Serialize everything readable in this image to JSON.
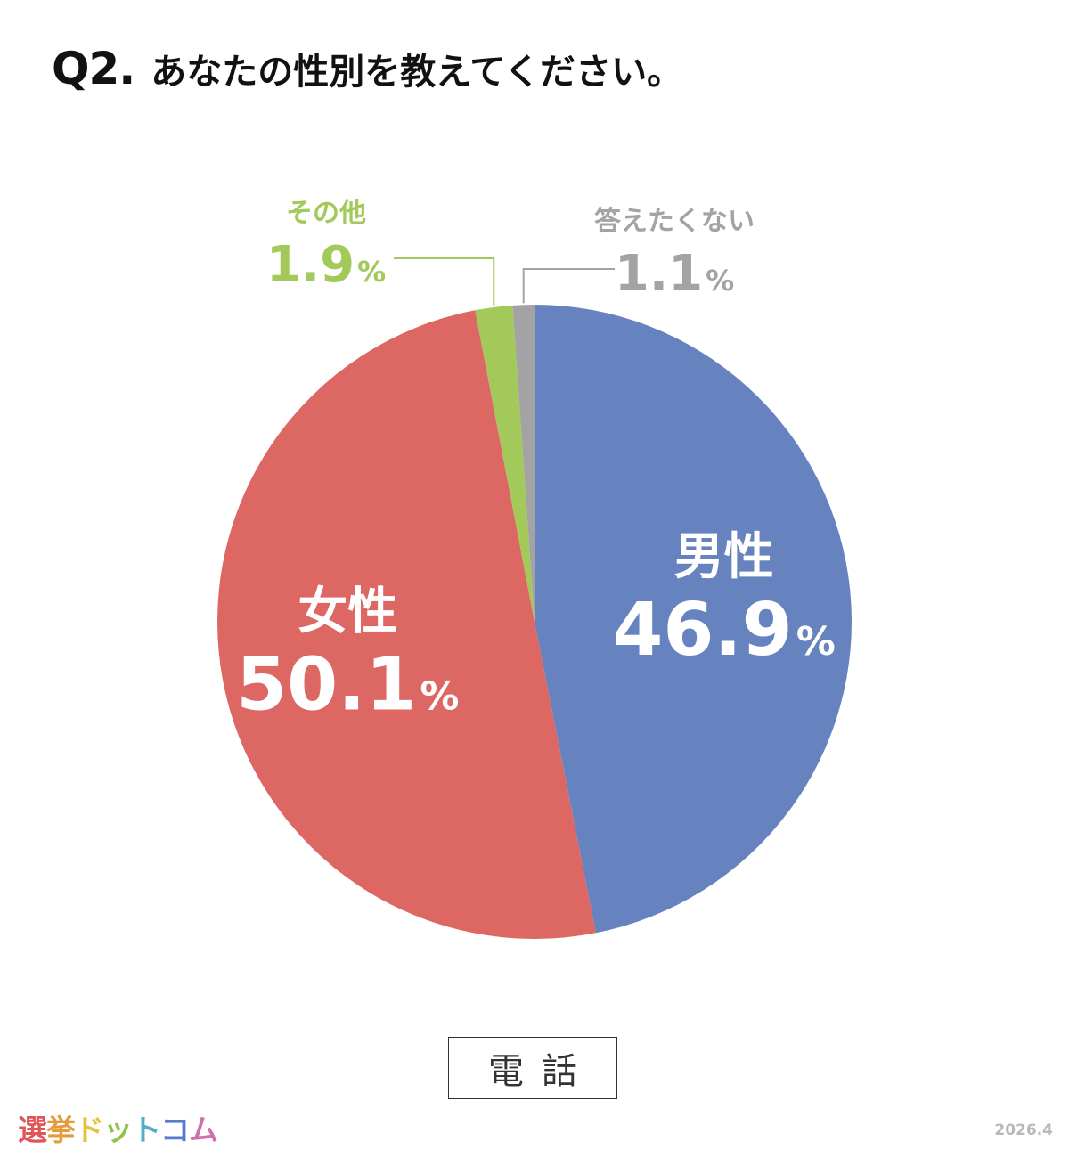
{
  "title": {
    "number": "Q2.",
    "text": "あなたの性別を教えてください。"
  },
  "chart_data": {
    "type": "pie",
    "slices": [
      {
        "label": "男性",
        "value": 46.9,
        "display": "46.9",
        "unit": "%",
        "color": "#6683c0",
        "label_color": "#ffffff"
      },
      {
        "label": "女性",
        "value": 50.1,
        "display": "50.1",
        "unit": "%",
        "color": "#dd6762",
        "label_color": "#ffffff"
      },
      {
        "label": "その他",
        "value": 1.9,
        "display": "1.9",
        "unit": "%",
        "color": "#a3c95b",
        "label_color": "#a3c95b"
      },
      {
        "label": "答えたくない",
        "value": 1.1,
        "display": "1.1",
        "unit": "%",
        "color": "#a3a3a3",
        "label_color": "#a3a3a3"
      }
    ]
  },
  "survey_mode": "電話",
  "brand": {
    "chars": [
      {
        "ch": "選",
        "color": "#e0555a"
      },
      {
        "ch": "挙",
        "color": "#e79a3a"
      },
      {
        "ch": "ド",
        "color": "#e6c23b"
      },
      {
        "ch": "ッ",
        "color": "#8cc24f"
      },
      {
        "ch": "ト",
        "color": "#4fb0c6"
      },
      {
        "ch": "コ",
        "color": "#5a7cc8"
      },
      {
        "ch": "ム",
        "color": "#cf6fae"
      }
    ]
  },
  "date": "2026.4"
}
